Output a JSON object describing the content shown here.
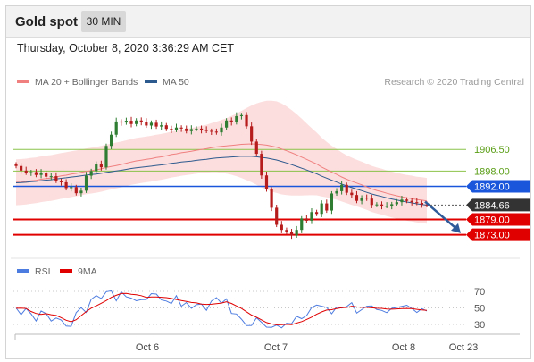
{
  "header": {
    "title": "Gold spot",
    "timeframe": "30 MIN"
  },
  "datetime": "Thursday, October 8, 2020 3:36:29 AM CET",
  "legend": [
    {
      "label": "MA 20 + Bollinger Bands",
      "color": "#f08080"
    },
    {
      "label": "MA 50",
      "color": "#2d5a8e"
    }
  ],
  "credit": "Research © 2020 Trading Central",
  "colors": {
    "up": "#2e7d32",
    "down": "#b71c1c",
    "band": "#fbd3d3",
    "ma20": "#f08080",
    "ma50": "#2d5a8e",
    "resistance": "#8bc34a",
    "pivot": "#1a56db",
    "support": "#e00000",
    "current": "#333333",
    "rsi": "#4d7ce0",
    "rsi_ma": "#e00000"
  },
  "chart_data": {
    "type": "candlestick",
    "x_tick_labels": [
      "Oct 6",
      "Oct 7",
      "Oct 8",
      "Oct 23"
    ],
    "price_levels": [
      {
        "label": "1906.50",
        "value": 1906.5,
        "kind": "resistance"
      },
      {
        "label": "1898.00",
        "value": 1898.0,
        "kind": "resistance"
      },
      {
        "label": "1892.00",
        "value": 1892.0,
        "kind": "pivot"
      },
      {
        "label": "1884.66",
        "value": 1884.66,
        "kind": "current"
      },
      {
        "label": "1879.00",
        "value": 1879.0,
        "kind": "support"
      },
      {
        "label": "1873.00",
        "value": 1873.0,
        "kind": "support"
      }
    ],
    "close_series": [
      1900,
      1898.2,
      1897.4,
      1897.6,
      1896.5,
      1897.3,
      1895.8,
      1896,
      1894.2,
      1893.6,
      1891.3,
      1891.7,
      1889.3,
      1890.3,
      1896.2,
      1898,
      1900.6,
      1899.5,
      1907.9,
      1912.3,
      1917.5,
      1917.1,
      1917.8,
      1916.5,
      1917.9,
      1917.3,
      1915.9,
      1917,
      1915.5,
      1916,
      1914.6,
      1914.2,
      1915.1,
      1914.7,
      1913.7,
      1914.5,
      1914.7,
      1914.1,
      1913.8,
      1913.5,
      1913.2,
      1915.1,
      1917.9,
      1917.2,
      1919.6,
      1920,
      1915.6,
      1909.6,
      1904.8,
      1896.3,
      1890.8,
      1883.6,
      1876.9,
      1874.9,
      1874.1,
      1872.7,
      1874.9,
      1879.4,
      1878.5,
      1881.9,
      1881.2,
      1885.3,
      1882.5,
      1889.2,
      1890.1,
      1892.6,
      1889.5,
      1888.6,
      1886.3,
      1887.6,
      1887.2,
      1884.7,
      1884.9,
      1884.3,
      1884.3,
      1885,
      1885.8,
      1886.8,
      1886.3,
      1885.8,
      1885.5,
      1884.9,
      1884.66
    ],
    "ma20_series": [
      1893.6,
      1893.7,
      1893.9,
      1894.2,
      1894.4,
      1894.8,
      1895.1,
      1895.3,
      1895.7,
      1896.1,
      1896.4,
      1896.8,
      1897.1,
      1897.5,
      1897.9,
      1898.2,
      1898.5,
      1898.9,
      1899.4,
      1899.8,
      1900.2,
      1900.6,
      1901.1,
      1901.6,
      1902,
      1902.3,
      1902.6,
      1902.9,
      1903.3,
      1903.6,
      1904,
      1904.5,
      1904.8,
      1905.2,
      1905.5,
      1905.8,
      1906.2,
      1906.5,
      1906.8,
      1907.2,
      1907.5,
      1907.7,
      1907.9,
      1908.1,
      1908.3,
      1908.5,
      1908.6,
      1908.7,
      1908.6,
      1908.4,
      1908.2,
      1907.8,
      1907.4,
      1906.7,
      1906,
      1905.2,
      1904.4,
      1903.5,
      1902.6,
      1901.7,
      1900.8,
      1899.6,
      1898.6,
      1897.6,
      1896.7,
      1895.7,
      1894.8,
      1894,
      1893.3,
      1892.6,
      1891.8,
      1891,
      1890.4,
      1889.9,
      1889.3,
      1888.8,
      1888.3,
      1887.9,
      1887.5,
      1887.2,
      1886.8,
      1886.6,
      1886.3
    ],
    "rsi_levels": [
      70,
      50,
      30
    ],
    "rsi_legend": [
      {
        "label": "RSI",
        "color": "#4d7ce0"
      },
      {
        "label": "9MA",
        "color": "#e00000"
      }
    ],
    "rsi_series": [
      50,
      41.9,
      49.3,
      42.9,
      34.1,
      46.3,
      43.1,
      34.1,
      37.8,
      35.4,
      28.1,
      27.7,
      44.3,
      50.3,
      44.5,
      60.4,
      64.9,
      61.3,
      69.6,
      70.6,
      58.5,
      69.6,
      63.4,
      61.8,
      58.6,
      60,
      60.2,
      67.3,
      66.8,
      59.6,
      58.3,
      55.3,
      64.8,
      52,
      56.5,
      49.6,
      53.9,
      54.7,
      47.1,
      58.3,
      62.4,
      55.7,
      60.9,
      43.3,
      42.6,
      36.4,
      28.7,
      28.8,
      38.1,
      32.6,
      26.8,
      26.5,
      29.2,
      25.9,
      31.5,
      30.9,
      39.8,
      37,
      40.8,
      50.5,
      53.5,
      52,
      50.7,
      43,
      51,
      49.9,
      51.6,
      56.4,
      43.7,
      47.9,
      52,
      52.5,
      48.1,
      47,
      44.3,
      49.5,
      50.5,
      51.8,
      53.2,
      49.4,
      44.5,
      49.1,
      46.3
    ],
    "rsi_ma_series": [
      49.6,
      49.7,
      49.3,
      45.7,
      43.3,
      42.1,
      43.1,
      41.8,
      40.9,
      38.2,
      35.1,
      33.2,
      35.7,
      40.7,
      45.6,
      49.7,
      52.5,
      55.6,
      58.9,
      62.8,
      65.2,
      67.4,
      67.5,
      66.4,
      66,
      64.8,
      62.8,
      63.2,
      63.3,
      62.9,
      62.4,
      61.5,
      60.2,
      58.9,
      57.8,
      56.6,
      56.1,
      54.6,
      54.2,
      54.4,
      55.2,
      55.8,
      57.4,
      55.4,
      52.4,
      49.4,
      45.3,
      41.3,
      38.8,
      35.5,
      32.3,
      30.7,
      29.6,
      29.8,
      30.1,
      29.8,
      31.6,
      33.5,
      36.1,
      38.9,
      42.3,
      45.1,
      47.4,
      47.8,
      49.2,
      50.2,
      50.5,
      52,
      51.2,
      50.6,
      50.6,
      50.1,
      49.6,
      49.5,
      48.6,
      48.5,
      48.8,
      49.1,
      49.3,
      49.1,
      48.3,
      47.5,
      47.1
    ]
  }
}
